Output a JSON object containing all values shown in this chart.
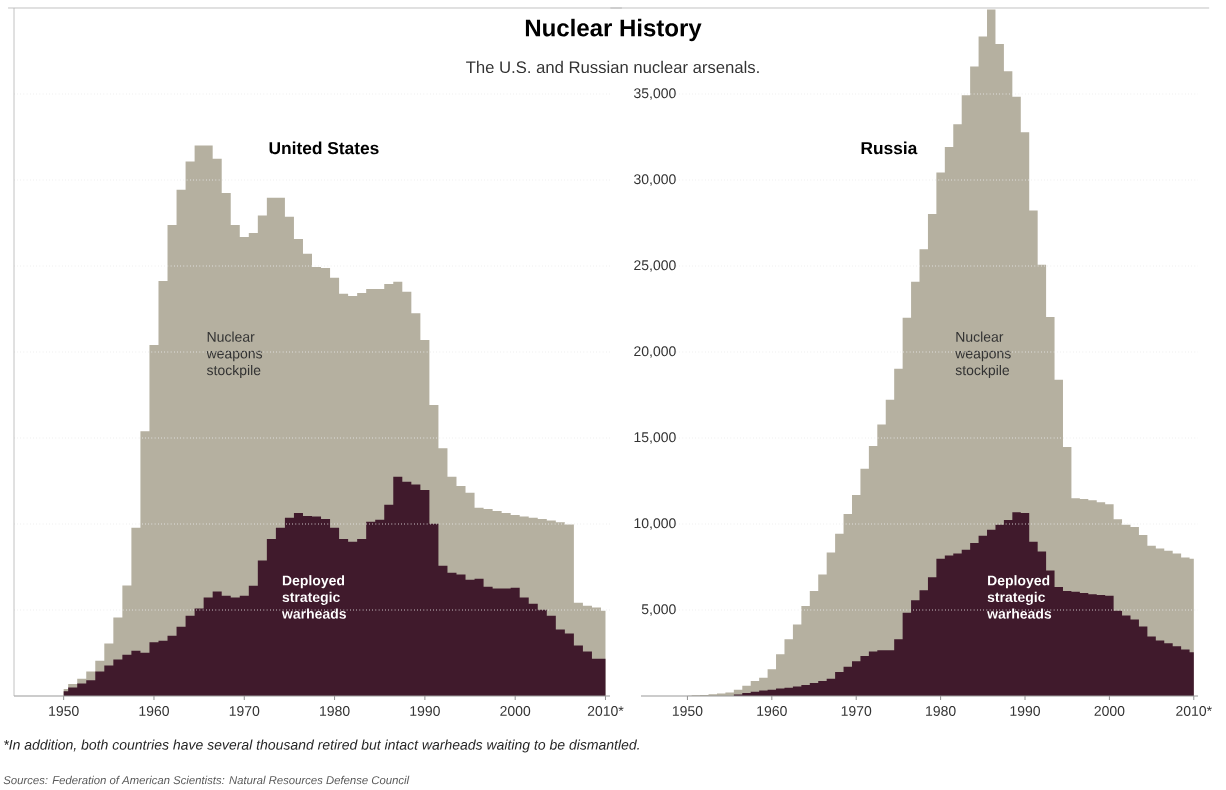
{
  "chart_data": [
    {
      "type": "other",
      "title": "Nuclear History",
      "subtitle": "The U.S. and Russian nuclear arsenals.",
      "annotations": [
        "*In addition, both countries have several thousand retired but intact warheads waiting to be dismantled.",
        "Sources: Federation of American Scientists: Natural Resources Defense Council"
      ]
    },
    {
      "type": "area",
      "title": "United States",
      "grid": "y",
      "tick_labels": "x",
      "xlim": [
        1944.5,
        2010.5
      ],
      "ylim": [
        0,
        40000
      ],
      "xticks": [
        {
          "value": 1950,
          "label": "1950"
        },
        {
          "value": 1960,
          "label": "1960"
        },
        {
          "value": 1970,
          "label": "1970"
        },
        {
          "value": 1980,
          "label": "1980"
        },
        {
          "value": 1990,
          "label": "1990"
        },
        {
          "value": 2000,
          "label": "2000"
        },
        {
          "value": 2010,
          "label": "2010*"
        }
      ],
      "yticks": [
        5000,
        10000,
        15000,
        20000,
        25000,
        30000,
        35000
      ],
      "x": [
        1950,
        1951,
        1952,
        1953,
        1954,
        1955,
        1956,
        1957,
        1958,
        1959,
        1960,
        1961,
        1962,
        1963,
        1964,
        1965,
        1966,
        1967,
        1968,
        1969,
        1970,
        1971,
        1972,
        1973,
        1974,
        1975,
        1976,
        1977,
        1978,
        1979,
        1980,
        1981,
        1982,
        1983,
        1984,
        1985,
        1986,
        1987,
        1988,
        1989,
        1990,
        1991,
        1992,
        1993,
        1994,
        1995,
        1996,
        1997,
        1998,
        1999,
        2000,
        2001,
        2002,
        2003,
        2004,
        2005,
        2006,
        2007,
        2008,
        2009,
        2010
      ],
      "series": [
        {
          "name": "Nuclear weapons stockpile",
          "color": "#b5b0a0",
          "values": [
            400,
            700,
            1000,
            1430,
            2050,
            3050,
            4560,
            6420,
            9780,
            15390,
            20400,
            24130,
            27390,
            29440,
            31070,
            32000,
            32000,
            31240,
            29250,
            27390,
            26690,
            26920,
            27930,
            28970,
            28970,
            27860,
            26570,
            25710,
            24940,
            24890,
            24310,
            23380,
            23260,
            23430,
            23660,
            23660,
            23960,
            24080,
            23500,
            22260,
            20700,
            16920,
            14410,
            12750,
            12210,
            11820,
            10940,
            10870,
            10750,
            10640,
            10520,
            10430,
            10360,
            10290,
            10200,
            10100,
            9970,
            5420,
            5250,
            5140,
            4950
          ]
        },
        {
          "name": "Deployed strategic warheads",
          "color": "#401a2c",
          "values": [
            270,
            500,
            730,
            920,
            1430,
            1780,
            2120,
            2400,
            2630,
            2520,
            3120,
            3210,
            3510,
            4020,
            4670,
            5090,
            5720,
            6070,
            5830,
            5720,
            5830,
            6410,
            7880,
            9130,
            9780,
            10360,
            10640,
            10470,
            10430,
            10290,
            9780,
            9130,
            8970,
            9130,
            10130,
            10240,
            11120,
            12750,
            12450,
            12290,
            11980,
            10010,
            7580,
            7160,
            7060,
            6760,
            6810,
            6350,
            6250,
            6250,
            6300,
            5720,
            5370,
            5020,
            4670,
            3860,
            3630,
            2940,
            2590,
            2170,
            2170
          ]
        }
      ]
    },
    {
      "type": "area",
      "title": "Russia",
      "grid": "y",
      "xlim": [
        1944.5,
        2010.5
      ],
      "ylim": [
        0,
        40000
      ],
      "xticks": [
        {
          "value": 1950,
          "label": "1950"
        },
        {
          "value": 1960,
          "label": "1960"
        },
        {
          "value": 1970,
          "label": "1970"
        },
        {
          "value": 1980,
          "label": "1980"
        },
        {
          "value": 1990,
          "label": "1990"
        },
        {
          "value": 2000,
          "label": "2000"
        },
        {
          "value": 2010,
          "label": "2010*"
        }
      ],
      "yticks": [
        {
          "value": 5000,
          "label": "5,000"
        },
        {
          "value": 10000,
          "label": "10,000"
        },
        {
          "value": 15000,
          "label": "15,000"
        },
        {
          "value": 20000,
          "label": "20,000"
        },
        {
          "value": 25000,
          "label": "25,000"
        },
        {
          "value": 30000,
          "label": "30,000"
        },
        {
          "value": 35000,
          "label": "35,000"
        }
      ],
      "x": [
        1950,
        1951,
        1952,
        1953,
        1954,
        1955,
        1956,
        1957,
        1958,
        1959,
        1960,
        1961,
        1962,
        1963,
        1964,
        1965,
        1966,
        1967,
        1968,
        1969,
        1970,
        1971,
        1972,
        1973,
        1974,
        1975,
        1976,
        1977,
        1978,
        1979,
        1980,
        1981,
        1982,
        1983,
        1984,
        1985,
        1986,
        1987,
        1988,
        1989,
        1990,
        1991,
        1992,
        1993,
        1994,
        1995,
        1996,
        1997,
        1998,
        1999,
        2000,
        2001,
        2002,
        2003,
        2004,
        2005,
        2006,
        2007,
        2008,
        2009,
        2010
      ],
      "series": [
        {
          "name": "Nuclear weapons stockpile",
          "color": "#b5b0a0",
          "values": [
            20,
            40,
            60,
            100,
            150,
            200,
            370,
            600,
            870,
            1060,
            1560,
            2430,
            3300,
            4150,
            5230,
            6100,
            7070,
            8350,
            9430,
            10580,
            11680,
            13210,
            14540,
            15780,
            17220,
            19020,
            21990,
            24090,
            25980,
            28030,
            30430,
            31920,
            33240,
            34930,
            36600,
            38350,
            39910,
            37900,
            36320,
            34840,
            32780,
            28220,
            25070,
            22030,
            18380,
            14480,
            11490,
            11450,
            11380,
            11260,
            11150,
            10280,
            9960,
            9820,
            9360,
            8740,
            8580,
            8440,
            8280,
            8050,
            7980
          ]
        },
        {
          "name": "Deployed strategic warheads",
          "color": "#401a2c",
          "values": [
            0,
            0,
            0,
            0,
            0,
            0,
            90,
            180,
            250,
            320,
            370,
            440,
            480,
            550,
            640,
            760,
            870,
            1010,
            1400,
            1700,
            2020,
            2320,
            2590,
            2660,
            2660,
            3300,
            4840,
            5570,
            6150,
            6900,
            7980,
            8170,
            8280,
            8510,
            8900,
            9310,
            9660,
            9960,
            10230,
            10690,
            10640,
            8970,
            8400,
            7300,
            6330,
            6100,
            6060,
            5990,
            5920,
            5870,
            5830,
            4960,
            4680,
            4450,
            4040,
            3460,
            3230,
            3070,
            2890,
            2710,
            2550
          ]
        }
      ]
    }
  ]
}
